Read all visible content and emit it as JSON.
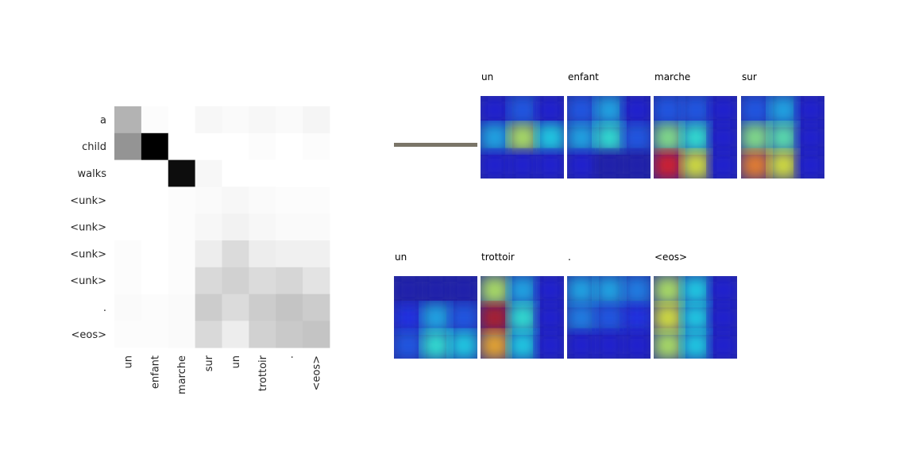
{
  "chart_data": {
    "type": "heatmap",
    "title": "",
    "xlabel": "",
    "ylabel": "",
    "rows": [
      "a",
      "child",
      "walks",
      "<unk>",
      "<unk>",
      "<unk>",
      "<unk>",
      ".",
      "<eos>"
    ],
    "cols": [
      "un",
      "enfant",
      "marche",
      "sur",
      "un",
      "trottoir",
      ".",
      "<eos>"
    ],
    "colormap": "greys",
    "values": [
      [
        0.3,
        0.01,
        0.0,
        0.03,
        0.02,
        0.03,
        0.02,
        0.04
      ],
      [
        0.42,
        1.0,
        0.0,
        0.0,
        0.0,
        0.01,
        0.0,
        0.01
      ],
      [
        0.0,
        0.0,
        0.95,
        0.03,
        0.0,
        0.0,
        0.0,
        0.0
      ],
      [
        0.0,
        0.0,
        0.01,
        0.02,
        0.03,
        0.02,
        0.01,
        0.01
      ],
      [
        0.0,
        0.0,
        0.01,
        0.03,
        0.05,
        0.03,
        0.02,
        0.02
      ],
      [
        0.01,
        0.0,
        0.01,
        0.07,
        0.14,
        0.07,
        0.06,
        0.06
      ],
      [
        0.01,
        0.0,
        0.01,
        0.15,
        0.18,
        0.14,
        0.16,
        0.11
      ],
      [
        0.02,
        0.01,
        0.02,
        0.2,
        0.14,
        0.2,
        0.23,
        0.2
      ],
      [
        0.01,
        0.01,
        0.02,
        0.15,
        0.07,
        0.18,
        0.21,
        0.23
      ]
    ]
  },
  "attention_tiles": [
    {
      "label": "un",
      "weights": [
        0.1,
        0.2,
        0.1,
        0.3,
        0.55,
        0.35,
        0.1,
        0.1,
        0.1
      ]
    },
    {
      "label": "enfant",
      "weights": [
        0.2,
        0.3,
        0.1,
        0.3,
        0.4,
        0.2,
        0.1,
        0.05,
        0.05
      ]
    },
    {
      "label": "marche",
      "weights": [
        0.2,
        0.2,
        0.1,
        0.5,
        0.4,
        0.1,
        0.9,
        0.6,
        0.1
      ]
    },
    {
      "label": "sur",
      "weights": [
        0.2,
        0.3,
        0.1,
        0.5,
        0.45,
        0.1,
        0.75,
        0.6,
        0.1
      ]
    },
    {
      "label": "un",
      "weights": [
        0.05,
        0.05,
        0.05,
        0.15,
        0.3,
        0.2,
        0.2,
        0.4,
        0.35
      ]
    },
    {
      "label": "trottoir",
      "weights": [
        0.55,
        0.3,
        0.1,
        0.95,
        0.4,
        0.1,
        0.7,
        0.35,
        0.1
      ]
    },
    {
      "label": ".",
      "weights": [
        0.3,
        0.3,
        0.25,
        0.25,
        0.2,
        0.15,
        0.1,
        0.1,
        0.1
      ]
    },
    {
      "label": "<eos>",
      "weights": [
        0.55,
        0.35,
        0.1,
        0.6,
        0.35,
        0.1,
        0.55,
        0.35,
        0.1
      ]
    }
  ]
}
